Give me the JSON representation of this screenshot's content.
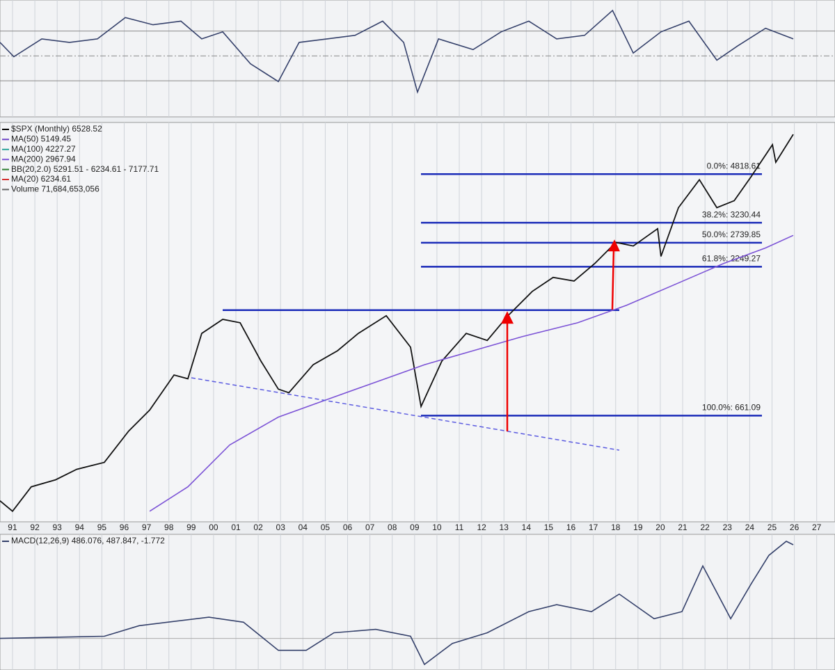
{
  "chart_data": [
    {
      "type": "line",
      "ylim": [
        1,
        95
      ],
      "levels": [
        30,
        50,
        70
      ],
      "series": [
        {
          "color": "#34406a",
          "x": [
            1990.44,
            1991.06,
            1992.31,
            1993.55,
            1994.8,
            1996.05,
            1997.29,
            1998.54,
            1999.47,
            2000.41,
            2001.65,
            2002.9,
            2003.83,
            2005.08,
            2006.33,
            2007.57,
            2008.51,
            2009.13,
            2010.07,
            2011.62,
            2012.87,
            2014.11,
            2015.36,
            2016.61,
            2017.86,
            2018.79,
            2020.03,
            2021.28,
            2022.53,
            2023.46,
            2024.71,
            2025.95
          ],
          "values": [
            60.9,
            49.4,
            63.7,
            60.9,
            63.7,
            80.9,
            75.1,
            78,
            63.7,
            69.4,
            43.7,
            29.4,
            60.9,
            63.7,
            66.6,
            78,
            60.9,
            20.9,
            63.7,
            55.1,
            69.4,
            78,
            63.7,
            66.6,
            86.6,
            52.3,
            69.4,
            78,
            46.6,
            58,
            72.3,
            63.7
          ]
        }
      ]
    },
    {
      "type": "line",
      "log_scale": true,
      "ylim": [
        276,
        7370
      ],
      "xlim": [
        1990.44,
        2027.82
      ],
      "xticks": [
        {
          "value": 1991,
          "label": "91"
        },
        {
          "value": 1992,
          "label": "92"
        },
        {
          "value": 1993,
          "label": "93"
        },
        {
          "value": 1994,
          "label": "94"
        },
        {
          "value": 1995,
          "label": "95"
        },
        {
          "value": 1996,
          "label": "96"
        },
        {
          "value": 1997,
          "label": "97"
        },
        {
          "value": 1998,
          "label": "98"
        },
        {
          "value": 1999,
          "label": "99"
        },
        {
          "value": 2000,
          "label": "00"
        },
        {
          "value": 2001,
          "label": "01"
        },
        {
          "value": 2002,
          "label": "02"
        },
        {
          "value": 2003,
          "label": "03"
        },
        {
          "value": 2004,
          "label": "04"
        },
        {
          "value": 2005,
          "label": "05"
        },
        {
          "value": 2006,
          "label": "06"
        },
        {
          "value": 2007,
          "label": "07"
        },
        {
          "value": 2008,
          "label": "08"
        },
        {
          "value": 2009,
          "label": "09"
        },
        {
          "value": 2010,
          "label": "10"
        },
        {
          "value": 2011,
          "label": "11"
        },
        {
          "value": 2012,
          "label": "12"
        },
        {
          "value": 2013,
          "label": "13"
        },
        {
          "value": 2014,
          "label": "14"
        },
        {
          "value": 2015,
          "label": "15"
        },
        {
          "value": 2016,
          "label": "16"
        },
        {
          "value": 2017,
          "label": "17"
        },
        {
          "value": 2018,
          "label": "18"
        },
        {
          "value": 2019,
          "label": "19"
        },
        {
          "value": 2020,
          "label": "20"
        },
        {
          "value": 2021,
          "label": "21"
        },
        {
          "value": 2022,
          "label": "22"
        },
        {
          "value": 2023,
          "label": "23"
        },
        {
          "value": 2024,
          "label": "24"
        },
        {
          "value": 2025,
          "label": "25"
        },
        {
          "value": 2026,
          "label": "26"
        },
        {
          "value": 2027,
          "label": "27"
        }
      ],
      "legend": [
        {
          "label": "$SPX (Monthly) 6528.52",
          "color": "#000000"
        },
        {
          "label": "MA(50) 5149.45",
          "color": "#6a3fc4"
        },
        {
          "label": "MA(100) 4227.27",
          "color": "#2aa39a"
        },
        {
          "label": "MA(200) 2967.94",
          "color": "#7b52d6"
        },
        {
          "label": "BB(20,2.0) 5291.51 - 6234.61 - 7177.71",
          "color": "#2e7d32"
        },
        {
          "label": "MA(20) 6234.61",
          "color": "#d32f2f"
        },
        {
          "label": "Volume 71,684,653,056",
          "color": "#666666"
        }
      ],
      "fib_levels": [
        {
          "label": "0.0%: 4818.61",
          "value": 4818.61
        },
        {
          "label": "38.2%: 3230.44",
          "value": 3230.44
        },
        {
          "label": "50.0%: 2739.85",
          "value": 2739.85
        },
        {
          "label": "61.8%: 2249.27",
          "value": 2249.27
        },
        {
          "label": "100.0%: 661.09",
          "value": 661.09
        }
      ],
      "resistance": 1574,
      "series": [
        {
          "color": "#111111",
          "x": [
            1990.44,
            1991,
            1991.84,
            1992.93,
            1993.87,
            1995.11,
            1996.2,
            1997.14,
            1998.23,
            1998.85,
            1999.47,
            2000.41,
            2001.19,
            2002.12,
            2002.9,
            2003.37,
            2004.46,
            2005.55,
            2006.48,
            2007.73,
            2008.82,
            2009.29,
            2010.22,
            2011.31,
            2012.25,
            2013.18,
            2014.27,
            2015.2,
            2016.14,
            2017.07,
            2018.01,
            2018.79,
            2019.88,
            2020.03,
            2020.81,
            2021.75,
            2022.53,
            2023.31,
            2024.08,
            2025.02,
            2025.17,
            2025.95
          ],
          "values": [
            328,
            301,
            368,
            390,
            425,
            450,
            582,
            692,
            923,
            895,
            1300,
            1459,
            1419,
            1035,
            822,
            798,
            1005,
            1127,
            1300,
            1503,
            1161,
            713,
            1035,
            1300,
            1227,
            1503,
            1837,
            2061,
            2000,
            2312,
            2748,
            2667,
            3076,
            2449,
            3656,
            4603,
            3656,
            3873,
            4735,
            6138,
            5312,
            6683
          ]
        },
        {
          "color": "#7b52d6",
          "x": [
            1997.14,
            1998.85,
            2000.72,
            2002.9,
            2005.08,
            2007.26,
            2009.44,
            2011.62,
            2013.8,
            2016.3,
            2018.48,
            2020.66,
            2022.84,
            2024.71,
            2025.95
          ],
          "values": [
            301,
            368,
            519,
            653,
            755,
            871,
            1005,
            1127,
            1265,
            1419,
            1637,
            1945,
            2312,
            2625,
            2911
          ]
        }
      ]
    },
    {
      "type": "line",
      "ylim": [
        -164,
        540
      ],
      "series": [
        {
          "name": "MACD(12,26,9) 486.076, 487.847, -1.772",
          "color": "#34406a",
          "x": [
            1990.44,
            1995.11,
            1996.67,
            1999.79,
            2001.34,
            2002.9,
            2004.15,
            2005.39,
            2007.26,
            2008.82,
            2009.44,
            2010.69,
            2012.25,
            2014.11,
            2015.36,
            2016.92,
            2018.16,
            2019.72,
            2020.97,
            2021.9,
            2023.15,
            2024.08,
            2024.86,
            2025.64,
            2025.95
          ],
          "values": [
            0,
            11,
            66,
            110,
            84,
            -62,
            -62,
            29,
            47,
            11,
            -135,
            -26,
            29,
            139,
            175,
            139,
            230,
            102,
            139,
            376,
            102,
            285,
            431,
            504,
            486
          ]
        }
      ]
    }
  ]
}
